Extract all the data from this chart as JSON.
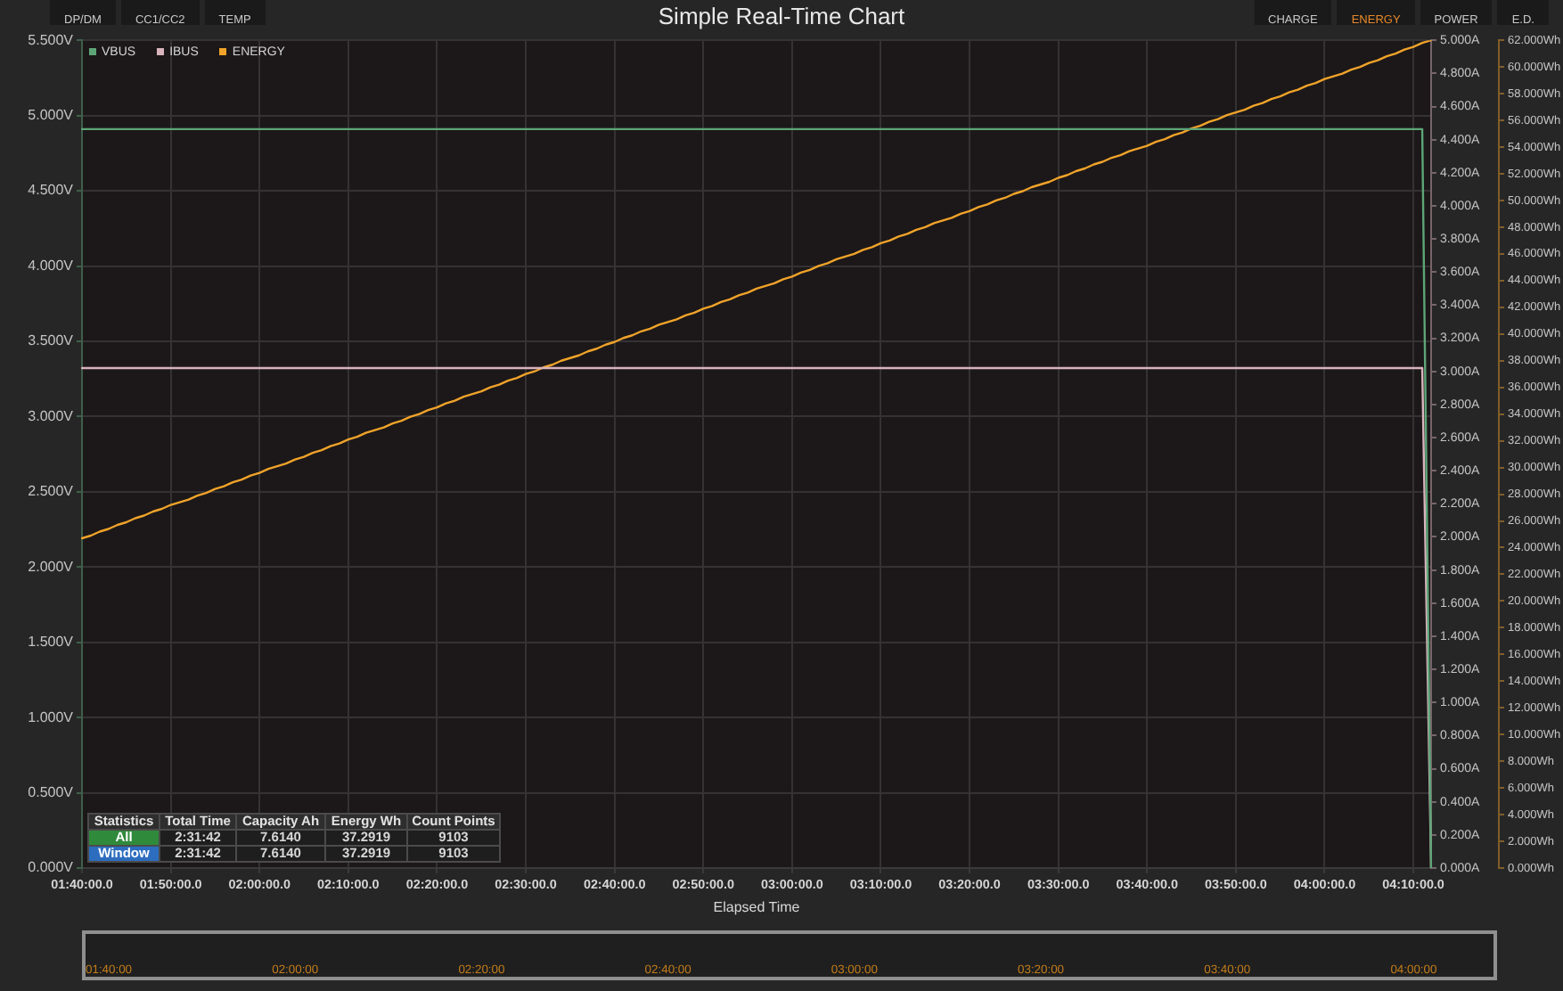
{
  "chart_data": {
    "type": "line",
    "title": "Simple Real-Time Chart",
    "xlabel": "Elapsed Time",
    "categories": [
      "01:40:00.0",
      null,
      null,
      null,
      null,
      null,
      null,
      null,
      null,
      null,
      "01:50:00.0",
      null,
      null,
      null,
      null,
      null,
      null,
      null,
      null,
      null,
      "02:00:00.0",
      null,
      null,
      null,
      null,
      null,
      null,
      null,
      null,
      null,
      "02:10:00.0",
      null,
      null,
      null,
      null,
      null,
      null,
      null,
      null,
      null,
      "02:20:00.0",
      null,
      null,
      null,
      null,
      null,
      null,
      null,
      null,
      null,
      "02:30:00.0",
      null,
      null,
      null,
      null,
      null,
      null,
      null,
      null,
      null,
      "02:40:00.0",
      null,
      null,
      null,
      null,
      null,
      null,
      null,
      null,
      null,
      "02:50:00.0",
      null,
      null,
      null,
      null,
      null,
      null,
      null,
      null,
      null,
      "03:00:00.0",
      null,
      null,
      null,
      null,
      null,
      null,
      null,
      null,
      null,
      "03:10:00.0",
      null,
      null,
      null,
      null,
      null,
      null,
      null,
      null,
      null,
      "03:20:00.0",
      null,
      null,
      null,
      null,
      null,
      null,
      null,
      null,
      null,
      "03:30:00.0",
      null,
      null,
      null,
      null,
      null,
      null,
      null,
      null,
      null,
      "03:40:00.0",
      null,
      null,
      null,
      null,
      null,
      null,
      null,
      null,
      null,
      "03:50:00.0",
      null,
      null,
      null,
      null,
      null,
      null,
      null,
      null,
      null,
      "04:00:00.0",
      null,
      null,
      null,
      null,
      null,
      null,
      null,
      null,
      null,
      "04:10:00.0",
      null,
      null
    ],
    "ylim": [
      0,
      5.5
    ],
    "yticks": [
      {
        "value": 0,
        "label": "0.000V"
      },
      {
        "value": 0.5,
        "label": "0.500V"
      },
      {
        "value": 1,
        "label": "1.000V"
      },
      {
        "value": 1.5,
        "label": "1.500V"
      },
      {
        "value": 2,
        "label": "2.000V"
      },
      {
        "value": 2.5,
        "label": "2.500V"
      },
      {
        "value": 3,
        "label": "3.000V"
      },
      {
        "value": 3.5,
        "label": "3.500V"
      },
      {
        "value": 4,
        "label": "4.000V"
      },
      {
        "value": 4.5,
        "label": "4.500V"
      },
      {
        "value": 5,
        "label": "5.000V"
      },
      {
        "value": 5.5,
        "label": "5.500V"
      }
    ],
    "y2lim": [
      0,
      5
    ],
    "y2ticks": [
      {
        "value": 0,
        "label": "0.000A"
      },
      {
        "value": 0.2,
        "label": "0.200A"
      },
      {
        "value": 0.4,
        "label": "0.400A"
      },
      {
        "value": 0.6,
        "label": "0.600A"
      },
      {
        "value": 0.8,
        "label": "0.800A"
      },
      {
        "value": 1,
        "label": "1.000A"
      },
      {
        "value": 1.2,
        "label": "1.200A"
      },
      {
        "value": 1.4,
        "label": "1.400A"
      },
      {
        "value": 1.6,
        "label": "1.600A"
      },
      {
        "value": 1.8,
        "label": "1.800A"
      },
      {
        "value": 2,
        "label": "2.000A"
      },
      {
        "value": 2.2,
        "label": "2.200A"
      },
      {
        "value": 2.4,
        "label": "2.400A"
      },
      {
        "value": 2.6,
        "label": "2.600A"
      },
      {
        "value": 2.8,
        "label": "2.800A"
      },
      {
        "value": 3,
        "label": "3.000A"
      },
      {
        "value": 3.2,
        "label": "3.200A"
      },
      {
        "value": 3.4,
        "label": "3.400A"
      },
      {
        "value": 3.6,
        "label": "3.600A"
      },
      {
        "value": 3.8,
        "label": "3.800A"
      },
      {
        "value": 4,
        "label": "4.000A"
      },
      {
        "value": 4.2,
        "label": "4.200A"
      },
      {
        "value": 4.4,
        "label": "4.400A"
      },
      {
        "value": 4.6,
        "label": "4.600A"
      },
      {
        "value": 4.8,
        "label": "4.800A"
      },
      {
        "value": 5,
        "label": "5.000A"
      }
    ],
    "y3lim": [
      0,
      62
    ],
    "y3ticks": [
      {
        "value": 0,
        "label": "0.000Wh"
      },
      {
        "value": 2,
        "label": "2.000Wh"
      },
      {
        "value": 4,
        "label": "4.000Wh"
      },
      {
        "value": 6,
        "label": "6.000Wh"
      },
      {
        "value": 8,
        "label": "8.000Wh"
      },
      {
        "value": 10,
        "label": "10.000Wh"
      },
      {
        "value": 12,
        "label": "12.000Wh"
      },
      {
        "value": 14,
        "label": "14.000Wh"
      },
      {
        "value": 16,
        "label": "16.000Wh"
      },
      {
        "value": 18,
        "label": "18.000Wh"
      },
      {
        "value": 20,
        "label": "20.000Wh"
      },
      {
        "value": 22,
        "label": "22.000Wh"
      },
      {
        "value": 24,
        "label": "24.000Wh"
      },
      {
        "value": 26,
        "label": "26.000Wh"
      },
      {
        "value": 28,
        "label": "28.000Wh"
      },
      {
        "value": 30,
        "label": "30.000Wh"
      },
      {
        "value": 32,
        "label": "32.000Wh"
      },
      {
        "value": 34,
        "label": "34.000Wh"
      },
      {
        "value": 36,
        "label": "36.000Wh"
      },
      {
        "value": 38,
        "label": "38.000Wh"
      },
      {
        "value": 40,
        "label": "40.000Wh"
      },
      {
        "value": 42,
        "label": "42.000Wh"
      },
      {
        "value": 44,
        "label": "44.000Wh"
      },
      {
        "value": 46,
        "label": "46.000Wh"
      },
      {
        "value": 48,
        "label": "48.000Wh"
      },
      {
        "value": 50,
        "label": "50.000Wh"
      },
      {
        "value": 52,
        "label": "52.000Wh"
      },
      {
        "value": 54,
        "label": "54.000Wh"
      },
      {
        "value": 56,
        "label": "56.000Wh"
      },
      {
        "value": 58,
        "label": "58.000Wh"
      },
      {
        "value": 60,
        "label": "60.000Wh"
      },
      {
        "value": 62,
        "label": "62.000Wh"
      }
    ],
    "series": [
      {
        "name": "VBUS",
        "color": "#5da577",
        "values": [
          4.91,
          4.91,
          4.91,
          4.91,
          4.91,
          4.91,
          4.91,
          4.91,
          4.91,
          4.91,
          4.91,
          4.91,
          4.91,
          4.91,
          4.91,
          4.91,
          4.91,
          4.91,
          4.91,
          4.91,
          4.91,
          4.91,
          4.91,
          4.91,
          4.91,
          4.91,
          4.91,
          4.91,
          4.91,
          4.91,
          4.91,
          4.91,
          4.91,
          4.91,
          4.91,
          4.91,
          4.91,
          4.91,
          4.91,
          4.91,
          4.91,
          4.91,
          4.91,
          4.91,
          4.91,
          4.91,
          4.91,
          4.91,
          4.91,
          4.91,
          4.91,
          4.91,
          4.91,
          4.91,
          4.91,
          4.91,
          4.91,
          4.91,
          4.91,
          4.91,
          4.91,
          4.91,
          4.91,
          4.91,
          4.91,
          4.91,
          4.91,
          4.91,
          4.91,
          4.91,
          4.91,
          4.91,
          4.91,
          4.91,
          4.91,
          4.91,
          4.91,
          4.91,
          4.91,
          4.91,
          4.91,
          4.91,
          4.91,
          4.91,
          4.91,
          4.91,
          4.91,
          4.91,
          4.91,
          4.91,
          4.91,
          4.91,
          4.91,
          4.91,
          4.91,
          4.91,
          4.91,
          4.91,
          4.91,
          4.91,
          4.91,
          4.91,
          4.91,
          4.91,
          4.91,
          4.91,
          4.91,
          4.91,
          4.91,
          4.91,
          4.91,
          4.91,
          4.91,
          4.91,
          4.91,
          4.91,
          4.91,
          4.91,
          4.91,
          4.91,
          4.91,
          4.91,
          4.91,
          4.91,
          4.91,
          4.91,
          4.91,
          4.91,
          4.91,
          4.91,
          4.91,
          4.91,
          4.91,
          4.91,
          4.91,
          4.91,
          4.91,
          4.91,
          4.91,
          4.91,
          4.91,
          4.91,
          4.91,
          4.91,
          4.91,
          4.91,
          4.91,
          4.91,
          4.91,
          4.91,
          4.91,
          4.91,
          0
        ]
      },
      {
        "name": "IBUS",
        "color": "#d9b3bd",
        "axis": "y2",
        "values": [
          3.02,
          3.02,
          3.02,
          3.02,
          3.02,
          3.02,
          3.02,
          3.02,
          3.02,
          3.02,
          3.02,
          3.02,
          3.02,
          3.02,
          3.02,
          3.02,
          3.02,
          3.02,
          3.02,
          3.02,
          3.02,
          3.02,
          3.02,
          3.02,
          3.02,
          3.02,
          3.02,
          3.02,
          3.02,
          3.02,
          3.02,
          3.02,
          3.02,
          3.02,
          3.02,
          3.02,
          3.02,
          3.02,
          3.02,
          3.02,
          3.02,
          3.02,
          3.02,
          3.02,
          3.02,
          3.02,
          3.02,
          3.02,
          3.02,
          3.02,
          3.02,
          3.02,
          3.02,
          3.02,
          3.02,
          3.02,
          3.02,
          3.02,
          3.02,
          3.02,
          3.02,
          3.02,
          3.02,
          3.02,
          3.02,
          3.02,
          3.02,
          3.02,
          3.02,
          3.02,
          3.02,
          3.02,
          3.02,
          3.02,
          3.02,
          3.02,
          3.02,
          3.02,
          3.02,
          3.02,
          3.02,
          3.02,
          3.02,
          3.02,
          3.02,
          3.02,
          3.02,
          3.02,
          3.02,
          3.02,
          3.02,
          3.02,
          3.02,
          3.02,
          3.02,
          3.02,
          3.02,
          3.02,
          3.02,
          3.02,
          3.02,
          3.02,
          3.02,
          3.02,
          3.02,
          3.02,
          3.02,
          3.02,
          3.02,
          3.02,
          3.02,
          3.02,
          3.02,
          3.02,
          3.02,
          3.02,
          3.02,
          3.02,
          3.02,
          3.02,
          3.02,
          3.02,
          3.02,
          3.02,
          3.02,
          3.02,
          3.02,
          3.02,
          3.02,
          3.02,
          3.02,
          3.02,
          3.02,
          3.02,
          3.02,
          3.02,
          3.02,
          3.02,
          3.02,
          3.02,
          3.02,
          3.02,
          3.02,
          3.02,
          3.02,
          3.02,
          3.02,
          3.02,
          3.02,
          3.02,
          3.02,
          3.02,
          0
        ]
      },
      {
        "name": "ENERGY",
        "color": "#f0a32a",
        "axis": "y3",
        "values": [
          24.7,
          24.9,
          25.2,
          25.4,
          25.7,
          25.9,
          26.2,
          26.4,
          26.7,
          26.9,
          27.2,
          27.4,
          27.6,
          27.9,
          28.1,
          28.4,
          28.6,
          28.9,
          29.1,
          29.4,
          29.6,
          29.9,
          30.1,
          30.3,
          30.6,
          30.8,
          31.1,
          31.3,
          31.6,
          31.8,
          32.1,
          32.3,
          32.6,
          32.8,
          33.0,
          33.3,
          33.5,
          33.8,
          34.0,
          34.3,
          34.5,
          34.8,
          35.0,
          35.3,
          35.5,
          35.7,
          36.0,
          36.2,
          36.5,
          36.7,
          37.0,
          37.2,
          37.5,
          37.7,
          38.0,
          38.2,
          38.4,
          38.7,
          38.9,
          39.2,
          39.4,
          39.7,
          39.9,
          40.2,
          40.4,
          40.7,
          40.9,
          41.1,
          41.4,
          41.6,
          41.9,
          42.1,
          42.4,
          42.6,
          42.9,
          43.1,
          43.4,
          43.6,
          43.8,
          44.1,
          44.3,
          44.6,
          44.8,
          45.1,
          45.3,
          45.6,
          45.8,
          46.0,
          46.3,
          46.5,
          46.8,
          47.0,
          47.3,
          47.5,
          47.8,
          48.0,
          48.3,
          48.5,
          48.7,
          49.0,
          49.2,
          49.5,
          49.7,
          50.0,
          50.2,
          50.5,
          50.7,
          51.0,
          51.2,
          51.4,
          51.7,
          51.9,
          52.2,
          52.4,
          52.7,
          52.9,
          53.2,
          53.4,
          53.7,
          53.9,
          54.1,
          54.4,
          54.6,
          54.9,
          55.1,
          55.4,
          55.6,
          55.9,
          56.1,
          56.4,
          56.6,
          56.8,
          57.1,
          57.3,
          57.6,
          57.8,
          58.1,
          58.3,
          58.6,
          58.8,
          59.1,
          59.3,
          59.5,
          59.8,
          60.0,
          60.3,
          60.5,
          60.8,
          61.0,
          61.3,
          61.5,
          61.8,
          62.0
        ]
      }
    ],
    "grid": true,
    "legend": "top left",
    "annotations": [
      "DP/DM",
      "CC1/CC2",
      "TEMP",
      "CHARGE",
      "ENERGY",
      "POWER",
      "E.D.",
      "Statistics",
      "Total Time",
      "Capacity Ah",
      "Energy Wh",
      "Count Points",
      "All",
      "2:31:42",
      "7.6140",
      "37.2919",
      "9103",
      "Window",
      "2:31:42",
      "7.6140",
      "37.2919",
      "9103",
      "01:40:00",
      "02:00:00",
      "02:20:00",
      "02:40:00",
      "03:00:00",
      "03:20:00",
      "03:40:00",
      "04:00:00"
    ]
  }
}
